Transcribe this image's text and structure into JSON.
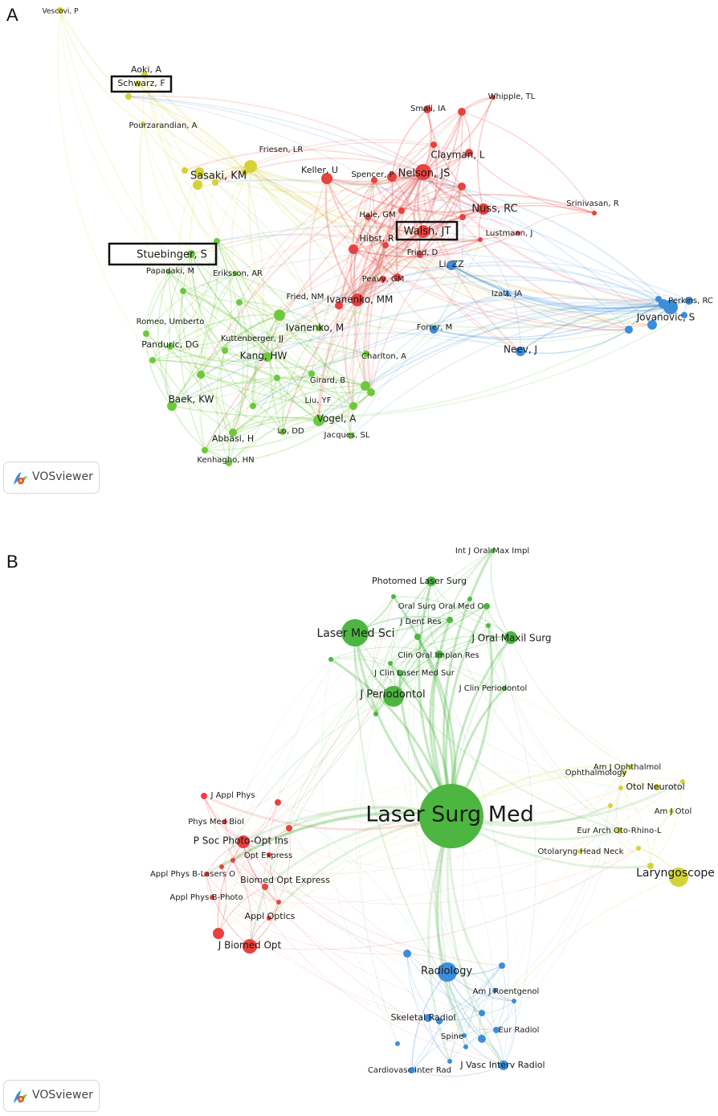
{
  "panels": [
    {
      "letter": "A",
      "badge": "VOSviewer",
      "nodes": [
        {
          "label": "Vescovi, P",
          "cluster": "yellow"
        },
        {
          "label": "Aoki, A",
          "cluster": "yellow"
        },
        {
          "label": "Schwarz, F",
          "cluster": "yellow",
          "highlight": true
        },
        {
          "label": "Pourzarandian, A",
          "cluster": "yellow"
        },
        {
          "label": "Friesen, LR",
          "cluster": "yellow"
        },
        {
          "label": "Sasaki, KM",
          "cluster": "yellow"
        },
        {
          "label": "Keller, U",
          "cluster": "red"
        },
        {
          "label": "Spencer, P",
          "cluster": "red"
        },
        {
          "label": "Nelson, JS",
          "cluster": "red"
        },
        {
          "label": "Small, IA",
          "cluster": "red"
        },
        {
          "label": "Whipple, TL",
          "cluster": "red"
        },
        {
          "label": "Clayman, L",
          "cluster": "red"
        },
        {
          "label": "Nuss, RC",
          "cluster": "red"
        },
        {
          "label": "Srinivasan, R",
          "cluster": "red"
        },
        {
          "label": "Hale, GM",
          "cluster": "red"
        },
        {
          "label": "Walsh, JT",
          "cluster": "red",
          "highlight": true
        },
        {
          "label": "Hibst, R",
          "cluster": "red"
        },
        {
          "label": "Lustmann, J",
          "cluster": "red"
        },
        {
          "label": "Fried, D",
          "cluster": "red"
        },
        {
          "label": "Li, ZZ",
          "cluster": "blue"
        },
        {
          "label": "Stuebinger, S",
          "cluster": "green",
          "highlight": true
        },
        {
          "label": "Papadaki, M",
          "cluster": "green"
        },
        {
          "label": "Eriksson, AR",
          "cluster": "green"
        },
        {
          "label": "Peavy, GM",
          "cluster": "red"
        },
        {
          "label": "Izatt, JA",
          "cluster": "blue"
        },
        {
          "label": "Perkins, RC",
          "cluster": "blue"
        },
        {
          "label": "Jovanovic, S",
          "cluster": "blue"
        },
        {
          "label": "Fried, NM",
          "cluster": "green"
        },
        {
          "label": "Ivanenko, MM",
          "cluster": "red"
        },
        {
          "label": "Romeo, Umberto",
          "cluster": "green"
        },
        {
          "label": "Ivanenko, M",
          "cluster": "green"
        },
        {
          "label": "Forrer, M",
          "cluster": "blue"
        },
        {
          "label": "Panduric, DG",
          "cluster": "green"
        },
        {
          "label": "Kuttenberger, JJ",
          "cluster": "green"
        },
        {
          "label": "Kang, HW",
          "cluster": "green"
        },
        {
          "label": "Neev, J",
          "cluster": "blue"
        },
        {
          "label": "Charlton, A",
          "cluster": "green"
        },
        {
          "label": "Girard, B",
          "cluster": "green"
        },
        {
          "label": "Baek, KW",
          "cluster": "green"
        },
        {
          "label": "Liu, YF",
          "cluster": "green"
        },
        {
          "label": "Vogel, A",
          "cluster": "green"
        },
        {
          "label": "Lo, DD",
          "cluster": "green"
        },
        {
          "label": "Jacques, SL",
          "cluster": "green"
        },
        {
          "label": "Abbasi, H",
          "cluster": "green"
        },
        {
          "label": "Kenhagho, HN",
          "cluster": "green"
        }
      ]
    },
    {
      "letter": "B",
      "badge": "VOSviewer",
      "nodes": [
        {
          "label": "Int J Oral Max Impl",
          "cluster": "green"
        },
        {
          "label": "Photomed Laser Surg",
          "cluster": "green"
        },
        {
          "label": "Oral Surg Oral Med O",
          "cluster": "green"
        },
        {
          "label": "J Dent Res",
          "cluster": "green"
        },
        {
          "label": "Laser Med Sci",
          "cluster": "green"
        },
        {
          "label": "J Oral Maxil Surg",
          "cluster": "green"
        },
        {
          "label": "Clin Oral Implan Res",
          "cluster": "green"
        },
        {
          "label": "J Clin Laser Med Sur",
          "cluster": "green"
        },
        {
          "label": "J Periodontol",
          "cluster": "green"
        },
        {
          "label": "J Clin Periodontol",
          "cluster": "green"
        },
        {
          "label": "Am J Ophthalmol",
          "cluster": "yellow"
        },
        {
          "label": "Ophthalmology",
          "cluster": "yellow"
        },
        {
          "label": "Otol Neurotol",
          "cluster": "yellow"
        },
        {
          "label": "Am J Otol",
          "cluster": "yellow"
        },
        {
          "label": "J Appl Phys",
          "cluster": "red"
        },
        {
          "label": "Laser Surg Med",
          "cluster": "green"
        },
        {
          "label": "Phys Med Biol",
          "cluster": "red"
        },
        {
          "label": "Eur Arch Oto-Rhino-L",
          "cluster": "yellow"
        },
        {
          "label": "P Soc Photo-Opt Ins",
          "cluster": "red"
        },
        {
          "label": "Opt Express",
          "cluster": "red"
        },
        {
          "label": "Otolaryng Head Neck",
          "cluster": "yellow"
        },
        {
          "label": "Laryngoscope",
          "cluster": "yellow"
        },
        {
          "label": "Appl Phys B-Lasers O",
          "cluster": "red"
        },
        {
          "label": "Biomed Opt Express",
          "cluster": "red"
        },
        {
          "label": "Appl Phys B-Photo",
          "cluster": "red"
        },
        {
          "label": "Appl Optics",
          "cluster": "red"
        },
        {
          "label": "J Biomed Opt",
          "cluster": "red"
        },
        {
          "label": "Radiology",
          "cluster": "blue"
        },
        {
          "label": "Am J Roentgenol",
          "cluster": "blue"
        },
        {
          "label": "Skeletal Radiol",
          "cluster": "blue"
        },
        {
          "label": "Eur Radiol",
          "cluster": "blue"
        },
        {
          "label": "Spine",
          "cluster": "blue"
        },
        {
          "label": "Cardiovasc Inter Rad",
          "cluster": "blue"
        },
        {
          "label": "J Vasc Interv Radiol",
          "cluster": "blue"
        }
      ]
    }
  ],
  "colors": {
    "red": "#e8423f",
    "green": "#6cc93c",
    "blue": "#3d8ed8",
    "yellow": "#d4d236",
    "greenB": "#4cb640",
    "highlight": "#111111"
  }
}
